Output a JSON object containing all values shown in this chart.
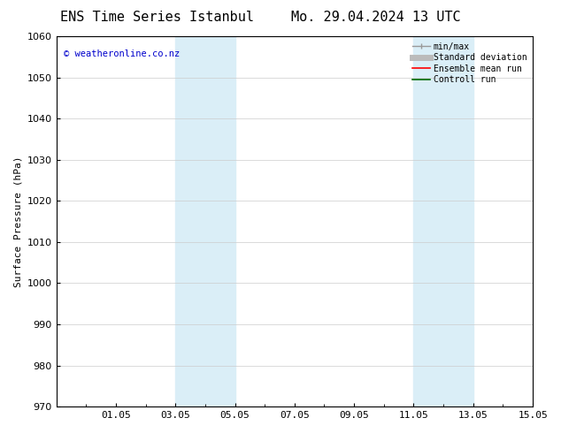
{
  "title_left": "ENS Time Series Istanbul",
  "title_right": "Mo. 29.04.2024 13 UTC",
  "ylabel": "Surface Pressure (hPa)",
  "ylim": [
    970,
    1060
  ],
  "yticks": [
    970,
    980,
    990,
    1000,
    1010,
    1020,
    1030,
    1040,
    1050,
    1060
  ],
  "xlim": [
    0,
    16
  ],
  "xtick_labels": [
    "01.05",
    "03.05",
    "05.05",
    "07.05",
    "09.05",
    "11.05",
    "13.05",
    "15.05"
  ],
  "xtick_positions": [
    2,
    4,
    6,
    8,
    10,
    12,
    14,
    16
  ],
  "shaded_bands": [
    {
      "x_start": 4.0,
      "x_end": 6.0
    },
    {
      "x_start": 12.0,
      "x_end": 14.0
    }
  ],
  "shaded_color": "#daeef7",
  "copyright_text": "© weatheronline.co.nz",
  "copyright_color": "#0000cc",
  "legend_items": [
    {
      "label": "min/max",
      "color": "#999999",
      "lw": 1.0
    },
    {
      "label": "Standard deviation",
      "color": "#bbbbbb",
      "lw": 5.0
    },
    {
      "label": "Ensemble mean run",
      "color": "#ff0000",
      "lw": 1.2
    },
    {
      "label": "Controll run",
      "color": "#006600",
      "lw": 1.2
    }
  ],
  "bg_color": "#ffffff",
  "grid_color": "#cccccc",
  "tick_fontsize": 8,
  "label_fontsize": 8,
  "title_fontsize": 11
}
